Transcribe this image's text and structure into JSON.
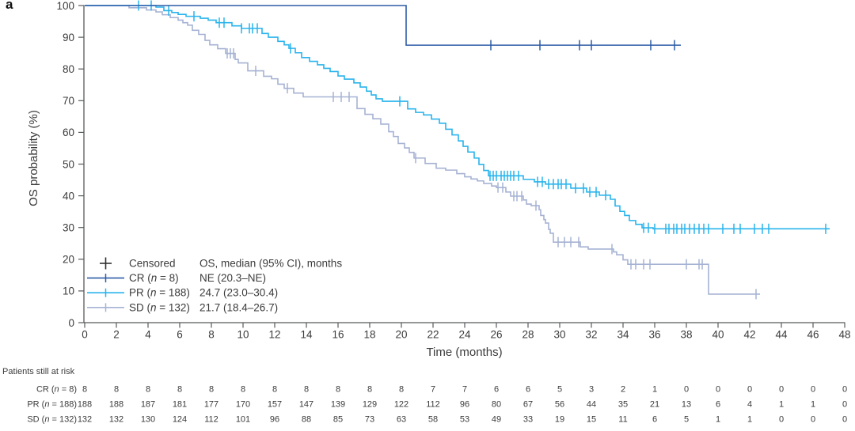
{
  "figure": {
    "panel_label": "a",
    "background": "#ffffff"
  },
  "colors": {
    "cr": "#2e5ca6",
    "pr": "#29b4ec",
    "sd": "#a6b2d3",
    "axis": "#58595b",
    "text": "#3b3b3b",
    "censored_mark": "#2f2f2f"
  },
  "legend": {
    "censored_label": "Censored",
    "header": "OS, median (95% CI), months",
    "entries": [
      {
        "label": "CR (n = 8)",
        "value": "NE (20.3–NE)",
        "color": "#2e5ca6"
      },
      {
        "label": "PR (n = 188)",
        "value": "24.7 (23.0–30.4)",
        "color": "#29b4ec"
      },
      {
        "label": "SD (n = 132)",
        "value": "21.7 (18.4–26.7)",
        "color": "#a6b2d3"
      }
    ]
  },
  "risk_table": {
    "title": "Patients still at risk",
    "time_points": [
      0,
      2,
      4,
      6,
      8,
      10,
      12,
      14,
      16,
      18,
      20,
      22,
      24,
      26,
      28,
      30,
      32,
      34,
      36,
      38,
      40,
      42,
      44,
      46,
      48
    ],
    "rows": [
      {
        "label": "CR (n = 8)",
        "counts": [
          8,
          8,
          8,
          8,
          8,
          8,
          8,
          8,
          8,
          8,
          8,
          7,
          7,
          6,
          6,
          5,
          3,
          2,
          1,
          0,
          0,
          0,
          0,
          0,
          0
        ]
      },
      {
        "label": "PR (n = 188)",
        "counts": [
          188,
          188,
          187,
          181,
          177,
          170,
          157,
          147,
          139,
          129,
          122,
          112,
          96,
          80,
          67,
          56,
          44,
          35,
          21,
          13,
          6,
          4,
          1,
          1,
          0
        ]
      },
      {
        "label": "SD (n = 132)",
        "counts": [
          132,
          132,
          130,
          124,
          112,
          101,
          96,
          88,
          85,
          73,
          63,
          58,
          53,
          49,
          33,
          19,
          15,
          11,
          6,
          5,
          1,
          1,
          0,
          0,
          0
        ]
      }
    ]
  },
  "chart_data": {
    "type": "line",
    "subtype": "kaplan-meier-step",
    "title": "",
    "xlabel": "Time (months)",
    "ylabel": "OS probability (%)",
    "xlim": [
      0,
      48
    ],
    "ylim": [
      0,
      100
    ],
    "x_ticks": [
      0,
      2,
      4,
      6,
      8,
      10,
      12,
      14,
      16,
      18,
      20,
      22,
      24,
      26,
      28,
      30,
      32,
      34,
      36,
      38,
      40,
      42,
      44,
      46,
      48
    ],
    "y_ticks": [
      0,
      10,
      20,
      30,
      40,
      50,
      60,
      70,
      80,
      90,
      100
    ],
    "grid": false,
    "legend_position": "lower-left-inside",
    "series": [
      {
        "name": "SD (n = 132)",
        "color": "#a6b2d3",
        "median_95ci": "21.7 (18.4–26.7)",
        "end_month": 42.65,
        "steps": [
          [
            0,
            100
          ],
          [
            2.8,
            99.3
          ],
          [
            3.9,
            98.6
          ],
          [
            4.5,
            98.0
          ],
          [
            4.9,
            97.1
          ],
          [
            5.4,
            96.2
          ],
          [
            5.9,
            95.4
          ],
          [
            6.2,
            94.6
          ],
          [
            6.5,
            93.8
          ],
          [
            6.8,
            92.2
          ],
          [
            7.2,
            90.9
          ],
          [
            7.6,
            89.0
          ],
          [
            7.9,
            87.6
          ],
          [
            8.4,
            86.4
          ],
          [
            8.9,
            84.9
          ],
          [
            9.5,
            83.0
          ],
          [
            9.7,
            81.9
          ],
          [
            10.3,
            79.4
          ],
          [
            11.3,
            77.7
          ],
          [
            11.8,
            76.9
          ],
          [
            12.2,
            75.2
          ],
          [
            12.6,
            73.9
          ],
          [
            13.2,
            72.4
          ],
          [
            13.8,
            71.2
          ],
          [
            17.2,
            67.5
          ],
          [
            17.7,
            65.7
          ],
          [
            18.2,
            64.3
          ],
          [
            18.7,
            62.6
          ],
          [
            19.2,
            60.2
          ],
          [
            19.5,
            58.7
          ],
          [
            19.8,
            56.5
          ],
          [
            20.2,
            55.1
          ],
          [
            20.5,
            53.7
          ],
          [
            20.8,
            51.9
          ],
          [
            21.5,
            50.2
          ],
          [
            22.2,
            48.7
          ],
          [
            22.8,
            48.1
          ],
          [
            23.5,
            47.0
          ],
          [
            24.0,
            46.0
          ],
          [
            24.4,
            45.3
          ],
          [
            24.8,
            44.7
          ],
          [
            25.2,
            43.9
          ],
          [
            25.7,
            43.1
          ],
          [
            26.0,
            42.6
          ],
          [
            26.6,
            41.2
          ],
          [
            26.9,
            39.9
          ],
          [
            27.7,
            38.7
          ],
          [
            27.9,
            37.4
          ],
          [
            28.2,
            36.9
          ],
          [
            28.7,
            35.6
          ],
          [
            28.8,
            33.8
          ],
          [
            29.0,
            32.5
          ],
          [
            29.1,
            31.4
          ],
          [
            29.3,
            29.4
          ],
          [
            29.4,
            28.2
          ],
          [
            29.6,
            25.4
          ],
          [
            31.3,
            23.9
          ],
          [
            31.8,
            23.2
          ],
          [
            33.4,
            22.3
          ],
          [
            33.6,
            21.4
          ],
          [
            34.0,
            19.8
          ],
          [
            34.3,
            18.4
          ],
          [
            39.4,
            9.0
          ]
        ],
        "censored_months": [
          9.0,
          9.2,
          9.4,
          10.8,
          12.8,
          15.7,
          16.2,
          16.7,
          20.9,
          26.1,
          26.4,
          27.1,
          27.3,
          27.6,
          28.5,
          29.9,
          30.3,
          30.7,
          31.2,
          33.3,
          34.5,
          34.8,
          35.3,
          35.7,
          38.0,
          38.8,
          39.0,
          42.4
        ]
      },
      {
        "name": "PR (n = 188)",
        "color": "#29b4ec",
        "median_95ci": "24.7 (23.0–30.4)",
        "end_month": 47.05,
        "steps": [
          [
            0,
            100
          ],
          [
            4.5,
            99.5
          ],
          [
            5.0,
            98.4
          ],
          [
            5.5,
            97.8
          ],
          [
            5.9,
            97.2
          ],
          [
            6.4,
            96.6
          ],
          [
            7.3,
            96.0
          ],
          [
            7.8,
            95.4
          ],
          [
            8.3,
            94.6
          ],
          [
            9.3,
            93.6
          ],
          [
            9.9,
            92.8
          ],
          [
            11.2,
            91.2
          ],
          [
            11.6,
            90.0
          ],
          [
            12.2,
            88.7
          ],
          [
            12.6,
            87.6
          ],
          [
            12.9,
            86.5
          ],
          [
            13.3,
            85.1
          ],
          [
            13.7,
            83.6
          ],
          [
            14.2,
            82.4
          ],
          [
            14.7,
            81.3
          ],
          [
            15.1,
            80.2
          ],
          [
            15.5,
            79.2
          ],
          [
            16.0,
            77.8
          ],
          [
            16.4,
            76.8
          ],
          [
            17.0,
            75.6
          ],
          [
            17.4,
            74.3
          ],
          [
            17.8,
            73.0
          ],
          [
            18.1,
            71.8
          ],
          [
            18.4,
            70.6
          ],
          [
            18.8,
            69.8
          ],
          [
            20.4,
            67.4
          ],
          [
            20.9,
            66.3
          ],
          [
            21.4,
            65.5
          ],
          [
            21.9,
            64.2
          ],
          [
            22.4,
            62.9
          ],
          [
            22.8,
            61.0
          ],
          [
            23.2,
            59.2
          ],
          [
            23.6,
            57.3
          ],
          [
            23.9,
            55.6
          ],
          [
            24.2,
            53.8
          ],
          [
            24.6,
            51.9
          ],
          [
            24.9,
            49.9
          ],
          [
            25.2,
            48.0
          ],
          [
            25.5,
            46.3
          ],
          [
            27.7,
            45.2
          ],
          [
            28.4,
            44.4
          ],
          [
            29.1,
            43.7
          ],
          [
            30.7,
            42.4
          ],
          [
            31.7,
            41.2
          ],
          [
            32.5,
            40.2
          ],
          [
            33.2,
            38.9
          ],
          [
            33.5,
            36.8
          ],
          [
            33.8,
            35.1
          ],
          [
            34.1,
            33.8
          ],
          [
            34.4,
            32.2
          ],
          [
            34.8,
            31.0
          ],
          [
            35.2,
            29.9
          ],
          [
            35.9,
            29.6
          ]
        ],
        "censored_months": [
          3.4,
          4.2,
          5.3,
          6.9,
          8.5,
          8.8,
          9.9,
          10.4,
          10.6,
          10.9,
          13.0,
          19.9,
          25.6,
          25.8,
          26.0,
          26.3,
          26.5,
          26.7,
          26.9,
          27.1,
          27.4,
          28.6,
          28.9,
          29.3,
          29.6,
          29.9,
          30.1,
          30.4,
          31.0,
          31.5,
          31.9,
          32.3,
          32.9,
          35.3,
          35.6,
          36.0,
          36.7,
          36.9,
          37.2,
          37.4,
          37.7,
          37.9,
          38.2,
          38.5,
          38.8,
          39.1,
          39.4,
          40.3,
          41.0,
          41.4,
          42.3,
          42.8,
          43.2,
          46.8
        ]
      },
      {
        "name": "CR (n = 8)",
        "color": "#2e5ca6",
        "median_95ci": "NE (20.3–NE)",
        "end_month": 37.65,
        "steps": [
          [
            0,
            100
          ],
          [
            20.3,
            87.5
          ]
        ],
        "censored_months": [
          25.65,
          28.75,
          31.25,
          32.0,
          35.75,
          37.25
        ]
      }
    ]
  }
}
